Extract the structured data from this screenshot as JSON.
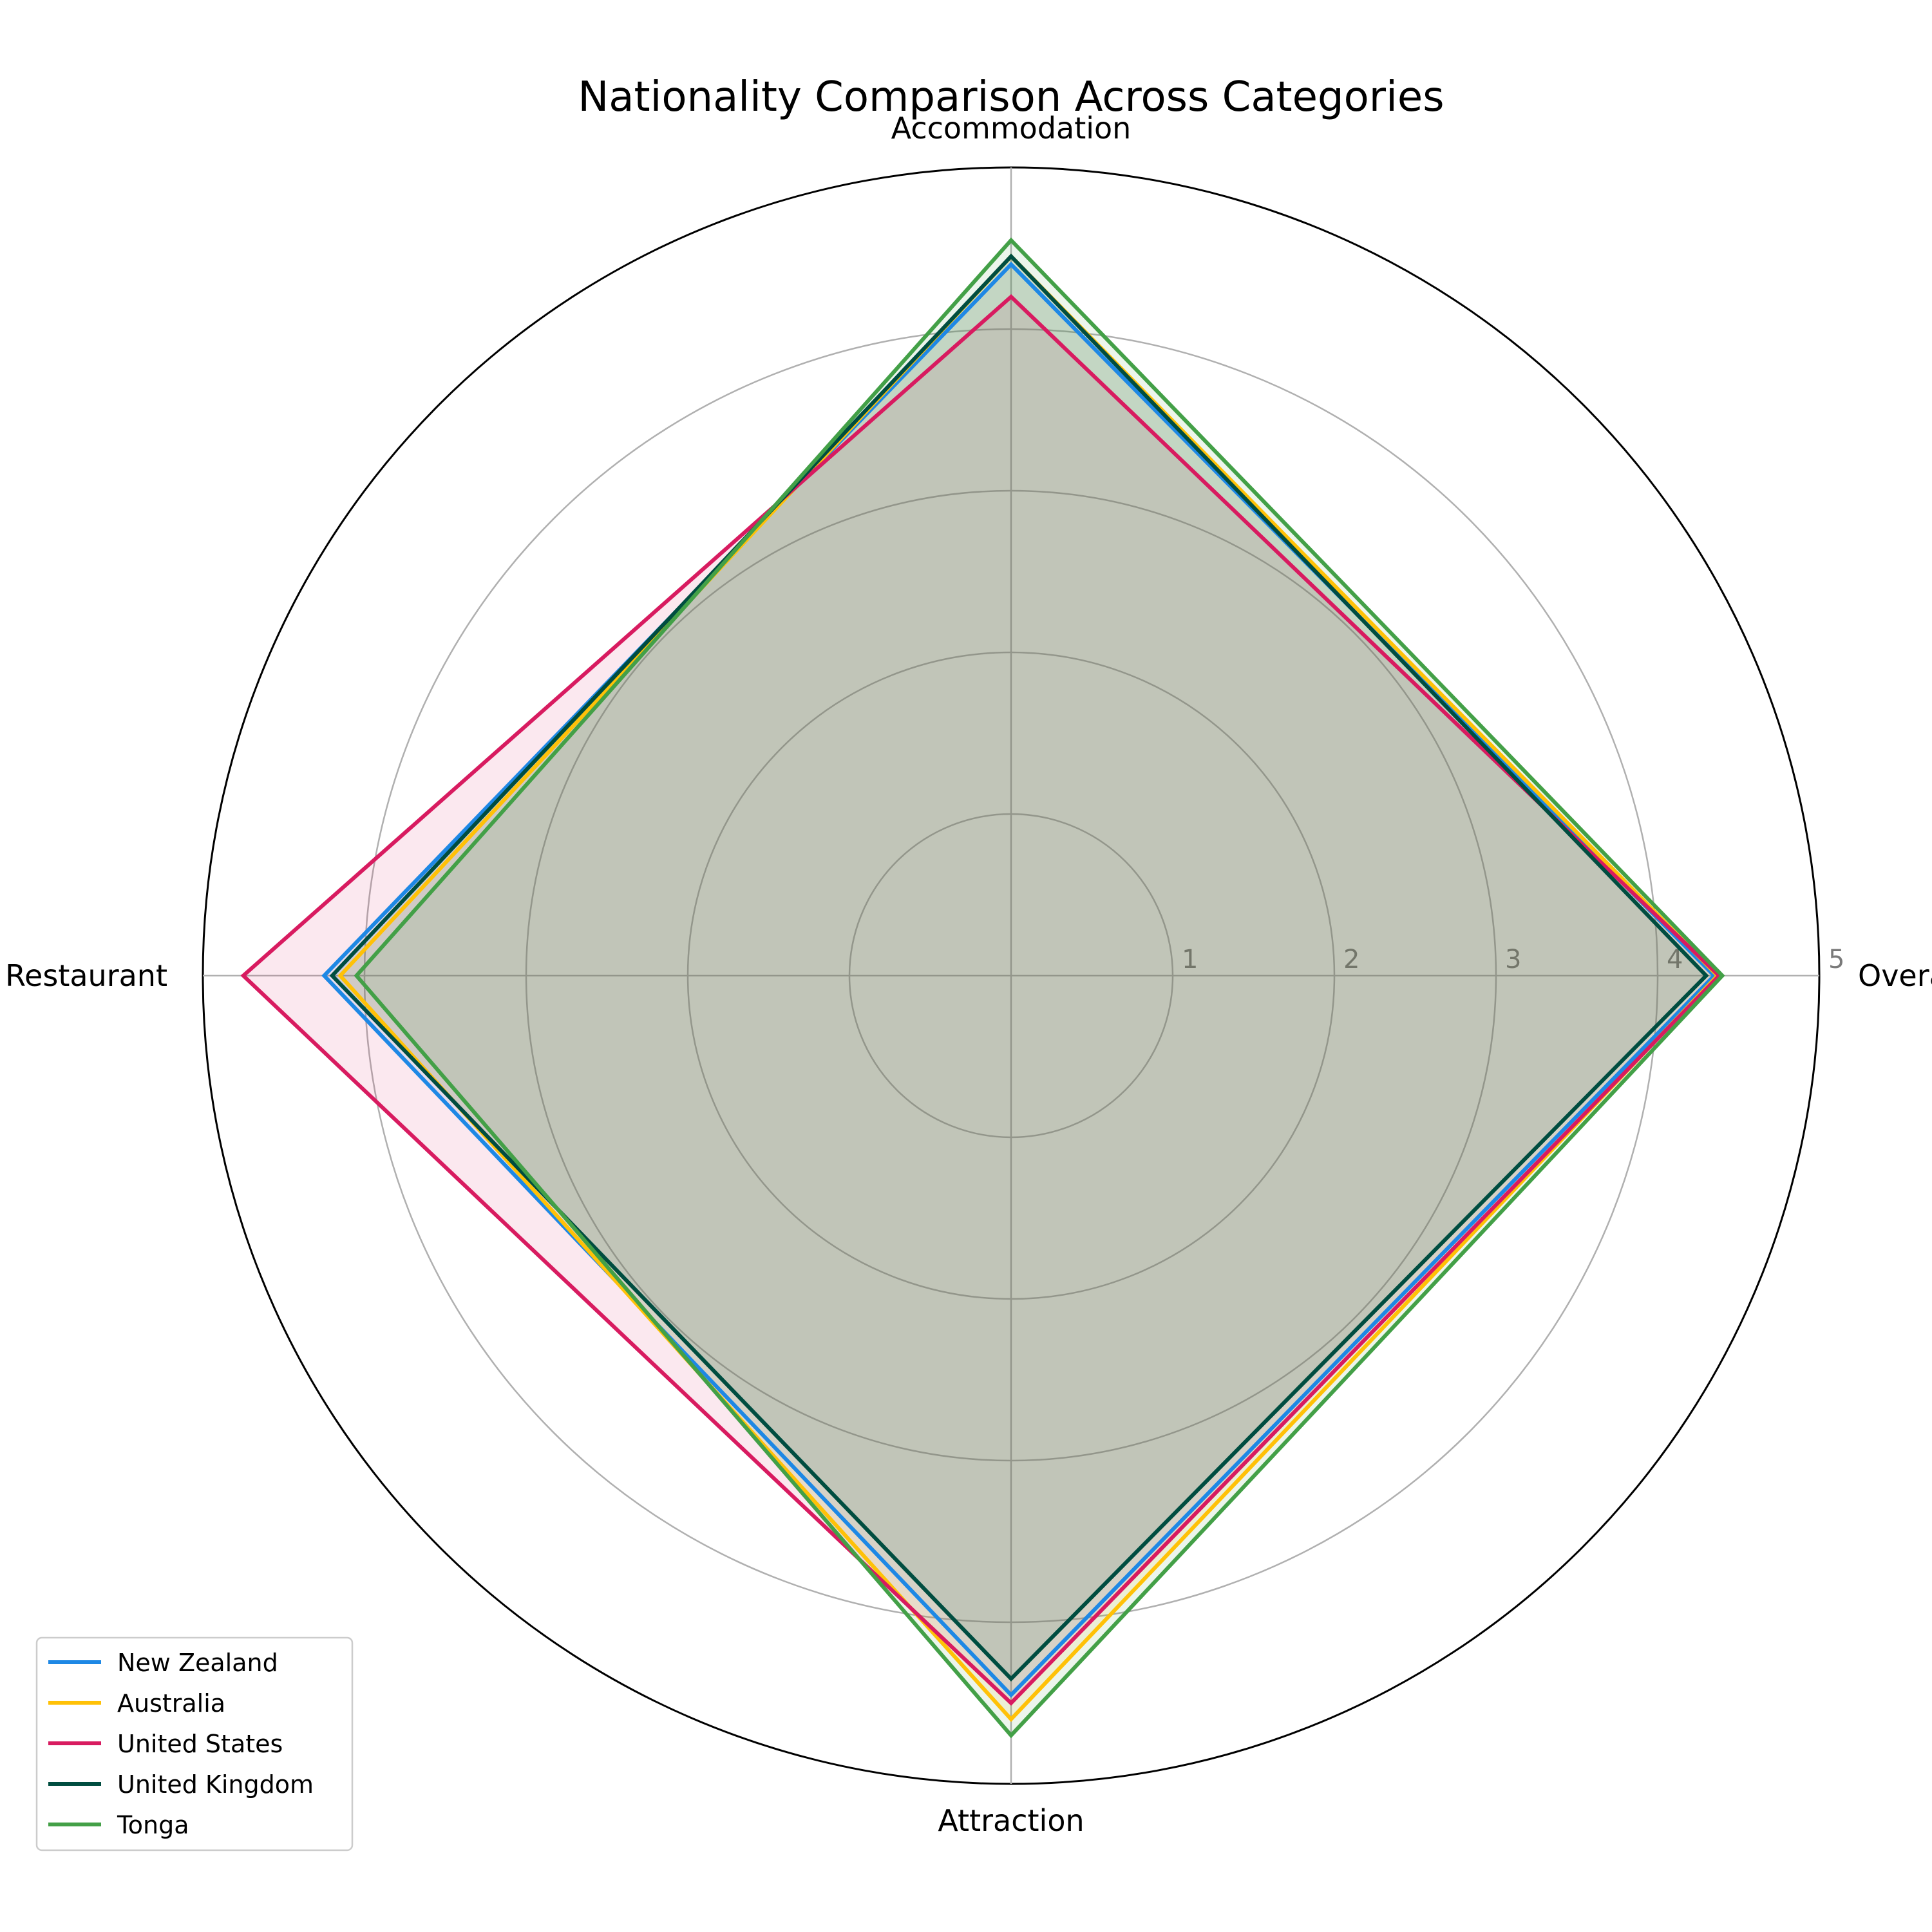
{
  "chart_data": {
    "type": "radar",
    "title": "Nationality Comparison Across Categories",
    "axes": [
      "Overall",
      "Accommodation",
      "Restaurant",
      "Attraction"
    ],
    "rlim": [
      0,
      5
    ],
    "rticks": [
      "1",
      "2",
      "3",
      "4",
      "5"
    ],
    "grid": true,
    "legend_position": "bottom-left",
    "series": [
      {
        "name": "New Zealand",
        "color": "#1E88E5",
        "values": [
          4.35,
          4.4,
          4.25,
          4.45
        ]
      },
      {
        "name": "Australia",
        "color": "#FFC107",
        "values": [
          4.37,
          4.45,
          4.15,
          4.6
        ]
      },
      {
        "name": "United States",
        "color": "#D81B60",
        "values": [
          4.38,
          4.2,
          4.75,
          4.5
        ]
      },
      {
        "name": "United Kingdom",
        "color": "#004D40",
        "values": [
          4.3,
          4.45,
          4.2,
          4.35
        ]
      },
      {
        "name": "Tonga",
        "color": "#43A047",
        "values": [
          4.4,
          4.55,
          4.05,
          4.7
        ]
      }
    ]
  }
}
